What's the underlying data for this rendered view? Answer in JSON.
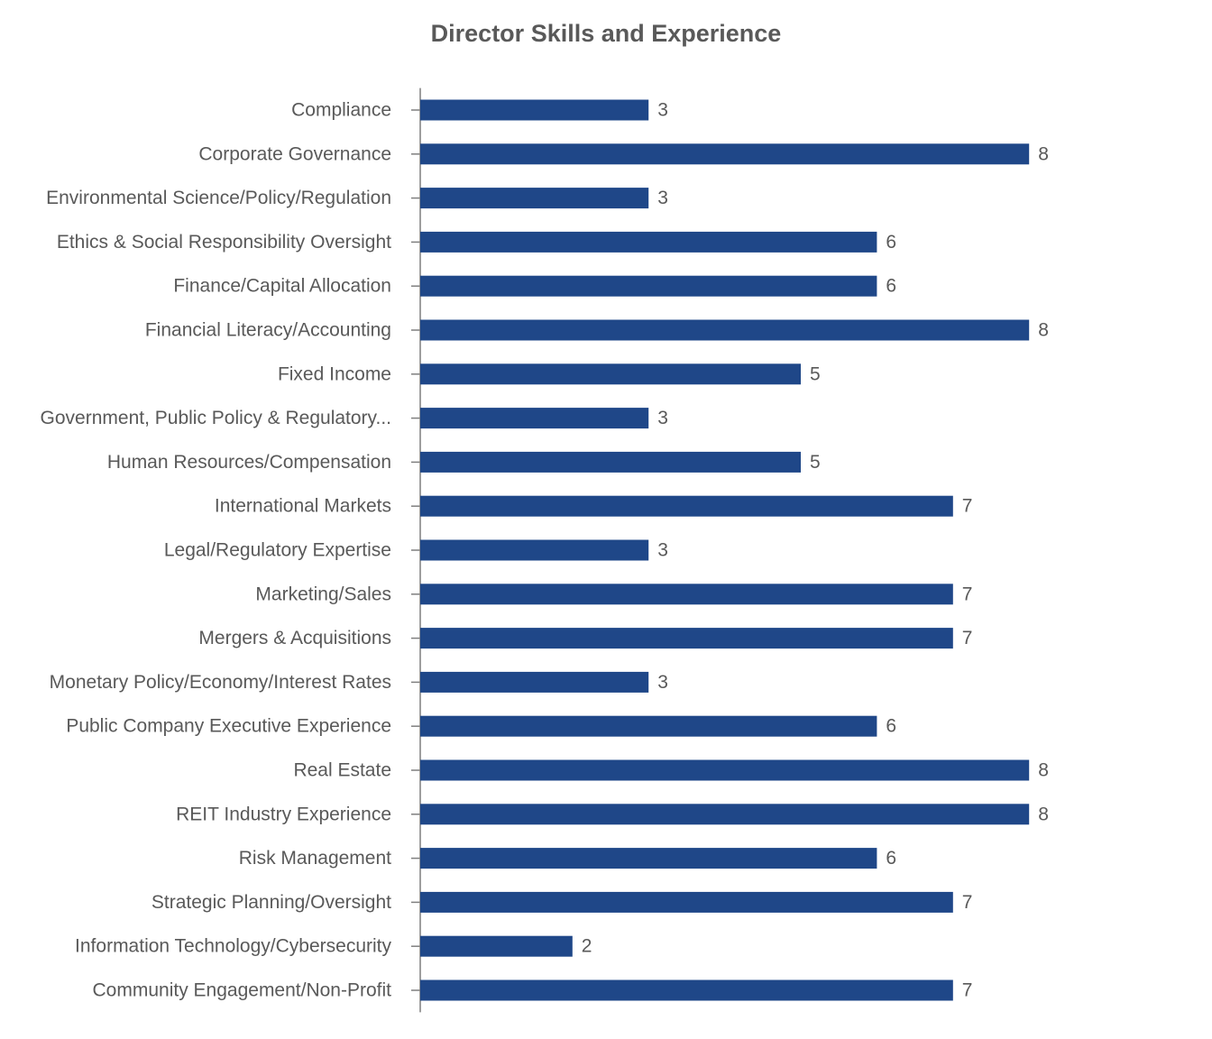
{
  "chart_data": {
    "type": "bar",
    "orientation": "horizontal",
    "title": "Director Skills and Experience",
    "xlabel": "",
    "ylabel": "",
    "categories": [
      "Compliance",
      "Corporate Governance",
      "Environmental Science/Policy/Regulation",
      "Ethics & Social Responsibility Oversight",
      "Finance/Capital Allocation",
      "Financial Literacy/Accounting",
      "Fixed Income",
      "Government, Public Policy & Regulatory...",
      "Human Resources/Compensation",
      "International Markets",
      "Legal/Regulatory Expertise",
      "Marketing/Sales",
      "Mergers & Acquisitions",
      "Monetary Policy/Economy/Interest Rates",
      "Public Company Executive Experience",
      "Real Estate",
      "REIT Industry Experience",
      "Risk Management",
      "Strategic Planning/Oversight",
      "Information Technology/Cybersecurity",
      "Community Engagement/Non-Profit"
    ],
    "values": [
      3,
      8,
      3,
      6,
      6,
      8,
      5,
      3,
      5,
      7,
      3,
      7,
      7,
      3,
      6,
      8,
      8,
      6,
      7,
      2,
      7
    ],
    "xlim": [
      0,
      8
    ],
    "grid": false,
    "legend": "none",
    "data_labels": true,
    "bar_color": "#1f4788",
    "text_color": "#595959",
    "axis_color": "#7f7f7f"
  }
}
